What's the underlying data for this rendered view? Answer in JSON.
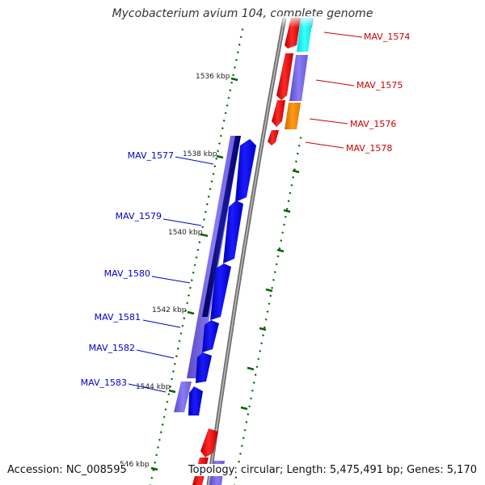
{
  "title": "Mycobacterium avium 104, complete genome",
  "footer": {
    "accession": "Accession: NC_008595",
    "summary": "Topology: circular; Length: 5,475,491 bp; Genes: 5,170"
  },
  "colors": {
    "red": "#ff0000",
    "blue": "#0000ff",
    "purple": "#7b68ee",
    "navy": "#00008b",
    "cyan": "#00ffff",
    "orange": "#ff8c00",
    "tick": "#006400",
    "backbone": "#808080",
    "label_red": "#cc0000",
    "label_blue": "#0000cc"
  },
  "map_labels": [
    "1536 kbp",
    "1538 kbp",
    "1540 kbp",
    "1542 kbp",
    "1544 kbp",
    "546 kbp"
  ],
  "gene_labels_right": [
    "MAV_1574",
    "MAV_1575",
    "MAV_1576",
    "MAV_1578"
  ],
  "gene_labels_left": [
    "MAV_1577",
    "MAV_1579",
    "MAV_1580",
    "MAV_1581",
    "MAV_1582",
    "MAV_1583"
  ]
}
